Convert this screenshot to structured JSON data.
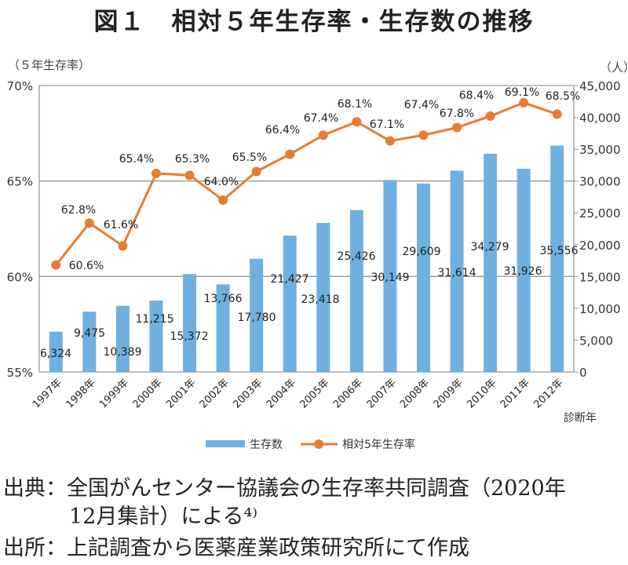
{
  "title": "図１　相対５年生存率・生存数の推移",
  "chart_data": {
    "type": "bar+line",
    "categories": [
      "1997年",
      "1998年",
      "1999年",
      "2000年",
      "2001年",
      "2002年",
      "2003年",
      "2004年",
      "2005年",
      "2006年",
      "2007年",
      "2008年",
      "2009年",
      "2010年",
      "2011年",
      "2012年"
    ],
    "xlabel": "診断年",
    "y_left_label": "（５年生存率）",
    "y_right_label": "（人）",
    "y_left_lim": [
      55,
      70
    ],
    "y_left_ticks": [
      "55%",
      "60%",
      "65%",
      "70%"
    ],
    "y_right_lim": [
      0,
      45000
    ],
    "y_right_ticks": [
      "0",
      "5,000",
      "10,000",
      "15,000",
      "20,000",
      "25,000",
      "30,000",
      "35,000",
      "40,000",
      "45,000"
    ],
    "grid": true,
    "legend_position": "bottom",
    "series": [
      {
        "name": "生存数",
        "type": "bar",
        "axis": "right",
        "color": "#6fb0e0",
        "values": [
          6324,
          9475,
          10389,
          11215,
          15372,
          13766,
          17780,
          21427,
          23418,
          25426,
          30149,
          29609,
          31614,
          34279,
          31926,
          35556
        ],
        "labels": [
          "6,324",
          "9,475",
          "10,389",
          "11,215",
          "15,372",
          "13,766",
          "17,780",
          "21,427",
          "23,418",
          "25,426",
          "30,149",
          "29,609",
          "31,614",
          "34,279",
          "31,926",
          "35,556"
        ]
      },
      {
        "name": "相対5年生存率",
        "type": "line",
        "axis": "left",
        "color": "#e87d2f",
        "values": [
          60.6,
          62.8,
          61.6,
          65.4,
          65.3,
          64.0,
          65.5,
          66.4,
          67.4,
          68.1,
          67.1,
          67.4,
          67.8,
          68.4,
          69.1,
          68.5
        ],
        "labels": [
          "60.6%",
          "62.8%",
          "61.6%",
          "65.4%",
          "65.3%",
          "64.0%",
          "65.5%",
          "66.4%",
          "67.4%",
          "68.1%",
          "67.1%",
          "67.4%",
          "67.8%",
          "68.4%",
          "69.1%",
          "68.5%"
        ]
      }
    ]
  },
  "source": {
    "line1": "出典：全国がんセンター協議会の生存率共同調査（2020年",
    "line2": "12月集計）による⁴⁾",
    "line3": "出所：上記調査から医薬産業政策研究所にて作成"
  }
}
